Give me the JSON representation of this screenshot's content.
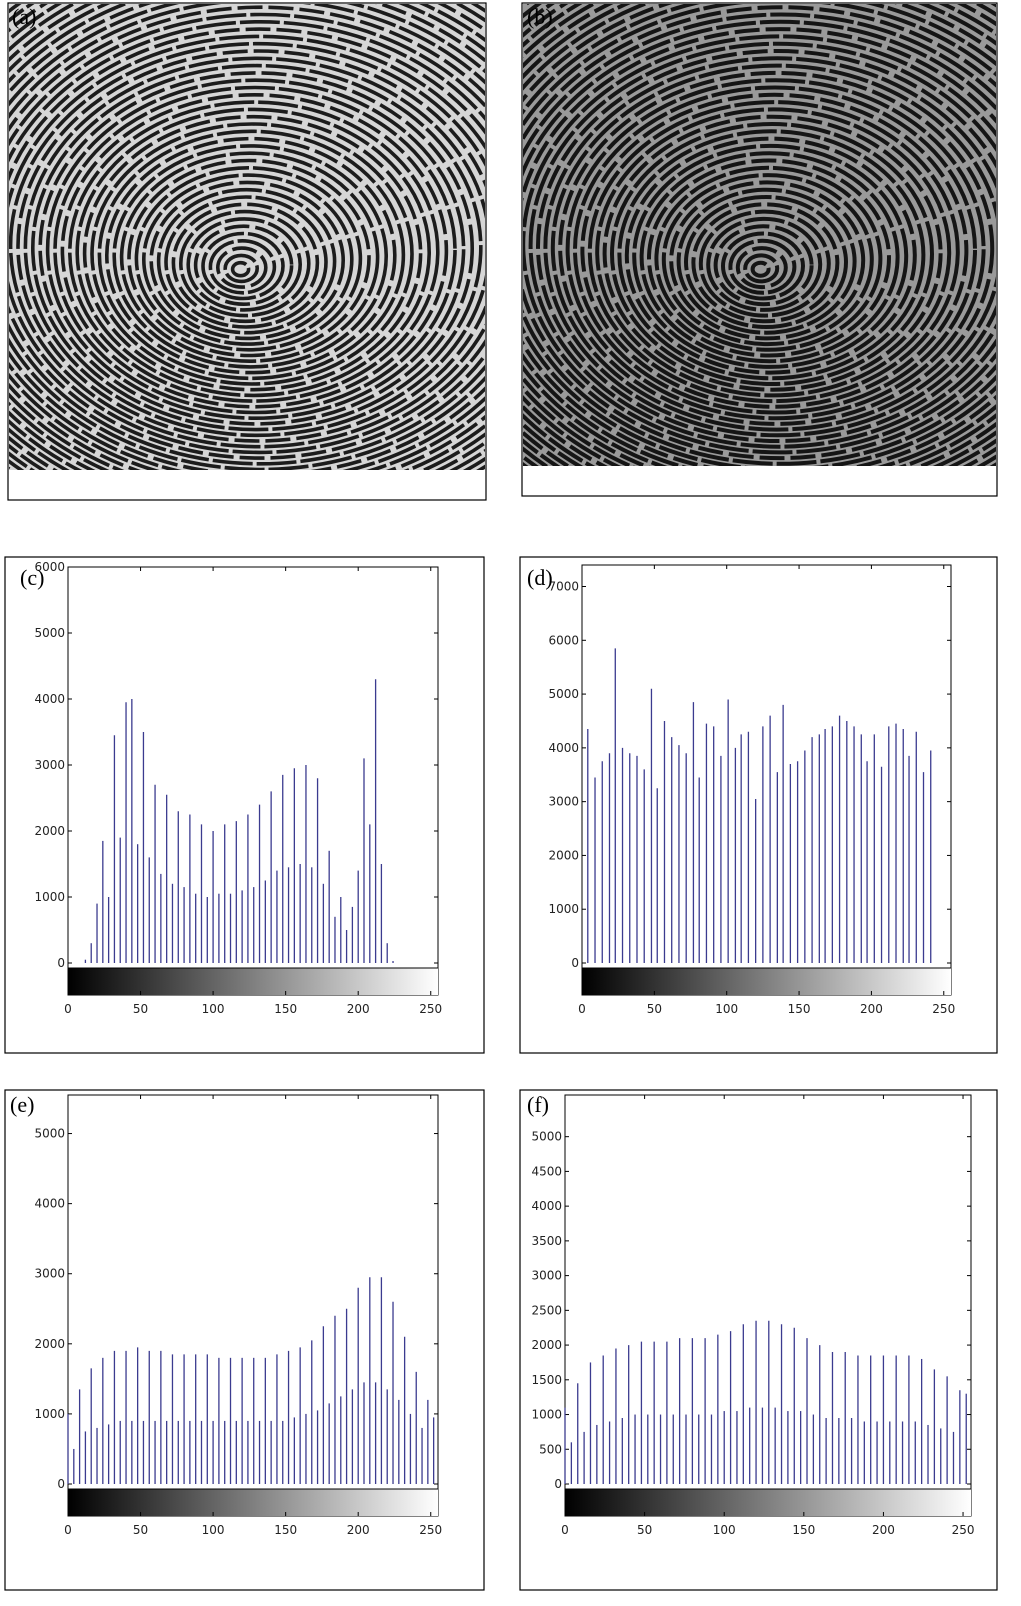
{
  "images": [
    {
      "label": "(a)"
    },
    {
      "label": "(b)"
    }
  ],
  "chart_data": [
    {
      "type": "histogram",
      "label": "(c)",
      "color": "#3b3b8f",
      "x": [
        0,
        4,
        8,
        12,
        16,
        20,
        24,
        28,
        32,
        36,
        40,
        44,
        48,
        52,
        56,
        60,
        64,
        68,
        72,
        76,
        80,
        84,
        88,
        92,
        96,
        100,
        104,
        108,
        112,
        116,
        120,
        124,
        128,
        132,
        136,
        140,
        144,
        148,
        152,
        156,
        160,
        164,
        168,
        172,
        176,
        180,
        184,
        188,
        192,
        196,
        200,
        204,
        208,
        212,
        216,
        220,
        224,
        228,
        232,
        236,
        240,
        244,
        248,
        252
      ],
      "values": [
        0,
        0,
        0,
        50,
        300,
        900,
        1850,
        1000,
        3450,
        1900,
        3950,
        4000,
        1800,
        3500,
        1600,
        2700,
        1350,
        2550,
        1200,
        2300,
        1150,
        2250,
        1050,
        2100,
        1000,
        2000,
        1050,
        2100,
        1050,
        2150,
        1100,
        2250,
        1150,
        2400,
        1250,
        2600,
        1400,
        2850,
        1450,
        2950,
        1500,
        3000,
        1450,
        2800,
        1200,
        1700,
        700,
        1000,
        500,
        850,
        1400,
        3100,
        2100,
        4300,
        1500,
        300,
        30,
        0,
        0,
        0,
        0,
        0,
        0,
        0
      ],
      "xlim": [
        0,
        255
      ],
      "xticks": [
        0,
        50,
        100,
        150,
        200,
        250
      ],
      "ylim": [
        0,
        6000
      ],
      "yticks": [
        0,
        1000,
        2000,
        3000,
        4000,
        5000,
        6000
      ]
    },
    {
      "type": "histogram",
      "label": "(d)",
      "color": "#3b3b8f",
      "x": [
        4,
        9,
        14,
        19,
        23,
        28,
        33,
        38,
        43,
        48,
        52,
        57,
        62,
        67,
        72,
        77,
        81,
        86,
        91,
        96,
        101,
        106,
        110,
        115,
        120,
        125,
        130,
        135,
        139,
        144,
        149,
        154,
        159,
        164,
        168,
        173,
        178,
        183,
        188,
        193,
        197,
        202,
        207,
        212,
        217,
        222,
        226,
        231,
        236,
        241
      ],
      "values": [
        4350,
        3450,
        3750,
        3900,
        5850,
        4000,
        3900,
        3850,
        3600,
        5100,
        3250,
        4500,
        4200,
        4050,
        3900,
        4850,
        3450,
        4450,
        4400,
        3850,
        4900,
        4000,
        4250,
        4300,
        3050,
        4400,
        4600,
        3550,
        4800,
        3700,
        3750,
        3950,
        4200,
        4250,
        4350,
        4400,
        4600,
        4500,
        4400,
        4250,
        3750,
        4250,
        3650,
        4400,
        4450,
        4350,
        3850,
        4300,
        3550,
        3950
      ],
      "xlim": [
        0,
        255
      ],
      "xticks": [
        0,
        50,
        100,
        150,
        200,
        250
      ],
      "ylim": [
        0,
        7400
      ],
      "yticks": [
        0,
        1000,
        2000,
        3000,
        4000,
        5000,
        6000,
        7000
      ]
    },
    {
      "type": "histogram",
      "label": "(e)",
      "color": "#3b3b8f",
      "x": [
        0,
        4,
        8,
        12,
        16,
        20,
        24,
        28,
        32,
        36,
        40,
        44,
        48,
        52,
        56,
        60,
        64,
        68,
        72,
        76,
        80,
        84,
        88,
        92,
        96,
        100,
        104,
        108,
        112,
        116,
        120,
        124,
        128,
        132,
        136,
        140,
        144,
        148,
        152,
        156,
        160,
        164,
        168,
        172,
        176,
        180,
        184,
        188,
        192,
        196,
        200,
        204,
        208,
        212,
        216,
        220,
        224,
        228,
        232,
        236,
        240,
        244,
        248,
        252
      ],
      "values": [
        1000,
        500,
        1350,
        750,
        1650,
        800,
        1800,
        850,
        1900,
        900,
        1900,
        900,
        1950,
        900,
        1900,
        900,
        1900,
        900,
        1850,
        900,
        1850,
        900,
        1850,
        900,
        1850,
        900,
        1800,
        900,
        1800,
        900,
        1800,
        900,
        1800,
        900,
        1800,
        900,
        1850,
        900,
        1900,
        950,
        1950,
        1000,
        2050,
        1050,
        2250,
        1150,
        2400,
        1250,
        2500,
        1350,
        2800,
        1450,
        2950,
        1450,
        2950,
        1350,
        2600,
        1200,
        2100,
        1000,
        1600,
        800,
        1200,
        950
      ],
      "xlim": [
        0,
        255
      ],
      "xticks": [
        0,
        50,
        100,
        150,
        200,
        250
      ],
      "ylim": [
        0,
        5550
      ],
      "yticks": [
        0,
        1000,
        2000,
        3000,
        4000,
        5000
      ]
    },
    {
      "type": "histogram",
      "label": "(f)",
      "color": "#3b3b8f",
      "x": [
        0,
        4,
        8,
        12,
        16,
        20,
        24,
        28,
        32,
        36,
        40,
        44,
        48,
        52,
        56,
        60,
        64,
        68,
        72,
        76,
        80,
        84,
        88,
        92,
        96,
        100,
        104,
        108,
        112,
        116,
        120,
        124,
        128,
        132,
        136,
        140,
        144,
        148,
        152,
        156,
        160,
        164,
        168,
        172,
        176,
        180,
        184,
        188,
        192,
        196,
        200,
        204,
        208,
        212,
        216,
        220,
        224,
        228,
        232,
        236,
        240,
        244,
        248,
        252
      ],
      "values": [
        1100,
        600,
        1450,
        750,
        1750,
        850,
        1850,
        900,
        1950,
        950,
        2000,
        1000,
        2050,
        1000,
        2050,
        1000,
        2050,
        1000,
        2100,
        1000,
        2100,
        1000,
        2100,
        1000,
        2150,
        1050,
        2200,
        1050,
        2300,
        1100,
        2350,
        1100,
        2350,
        1100,
        2300,
        1050,
        2250,
        1050,
        2100,
        1000,
        2000,
        950,
        1900,
        950,
        1900,
        950,
        1850,
        900,
        1850,
        900,
        1850,
        900,
        1850,
        900,
        1850,
        900,
        1800,
        850,
        1650,
        800,
        1550,
        750,
        1350,
        1300
      ],
      "xlim": [
        0,
        255
      ],
      "xticks": [
        0,
        50,
        100,
        150,
        200,
        250
      ],
      "ylim": [
        0,
        5600
      ],
      "yticks": [
        0,
        500,
        1000,
        1500,
        2000,
        2500,
        3000,
        3500,
        4000,
        4500,
        5000
      ]
    }
  ]
}
